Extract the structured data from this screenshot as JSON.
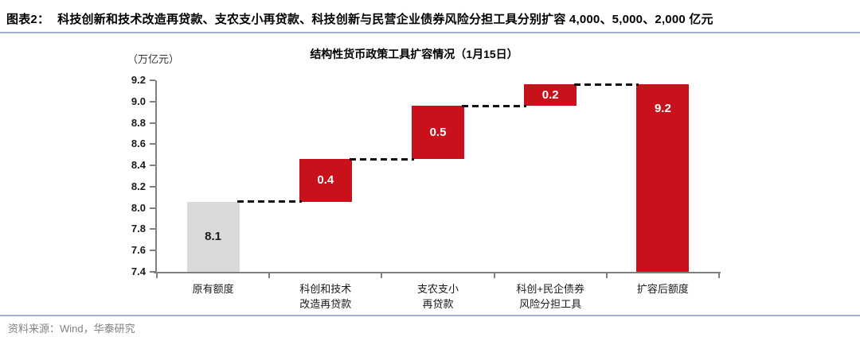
{
  "header": {
    "figure_label": "图表2：",
    "title": "科技创新和技术改造再贷款、支农支小再贷款、科技创新与民营企业债券风险分担工具分别扩容 4,000、5,000、2,000 亿元"
  },
  "chart_data": {
    "type": "bar",
    "subtype": "waterfall",
    "title": "结构性货币政策工具扩容情况（1月15日）",
    "unit_label": "（万亿元）",
    "y_axis": {
      "min": 7.4,
      "max": 9.2,
      "step": 0.2,
      "tick_labels": [
        "9.2",
        "9.0",
        "8.8",
        "8.6",
        "8.4",
        "8.2",
        "8.0",
        "7.8",
        "7.6",
        "7.4"
      ]
    },
    "categories": [
      [
        "原有额度"
      ],
      [
        "科创和技术",
        "改造再贷款"
      ],
      [
        "支农支小",
        "再贷款"
      ],
      [
        "科创+民企债券",
        "风险分担工具"
      ],
      [
        "扩容后额度"
      ]
    ],
    "bars": [
      {
        "category": "原有额度",
        "value": 8.1,
        "value_label": "8.1",
        "plot_start": 7.4,
        "plot_end": 8.06,
        "color": "#D9D9D9",
        "text_color": "#1a1a1a",
        "label_pos": "center"
      },
      {
        "category": "科创和技术改造再贷款",
        "value": 0.4,
        "value_label": "0.4",
        "plot_start": 8.06,
        "plot_end": 8.46,
        "color": "#C8111A",
        "text_color": "#ffffff",
        "label_pos": "center"
      },
      {
        "category": "支农支小再贷款",
        "value": 0.5,
        "value_label": "0.5",
        "plot_start": 8.46,
        "plot_end": 8.96,
        "color": "#C8111A",
        "text_color": "#ffffff",
        "label_pos": "center"
      },
      {
        "category": "科创+民企债券风险分担工具",
        "value": 0.2,
        "value_label": "0.2",
        "plot_start": 8.96,
        "plot_end": 9.16,
        "color": "#C8111A",
        "text_color": "#ffffff",
        "label_pos": "center"
      },
      {
        "category": "扩容后额度",
        "value": 9.2,
        "value_label": "9.2",
        "plot_start": 7.4,
        "plot_end": 9.16,
        "color": "#C8111A",
        "text_color": "#ffffff",
        "label_pos": "top"
      }
    ],
    "connectors": {
      "style": "dashed",
      "color": "#111111"
    },
    "colors": {
      "accent_red": "#C8111A",
      "base_gray": "#D9D9D9",
      "axis_gray": "#7f7f7f",
      "rule_blue": "#9fb1ce"
    },
    "legend": "none",
    "grid": "off"
  },
  "footer": {
    "source": "资料来源：Wind，华泰研究"
  }
}
